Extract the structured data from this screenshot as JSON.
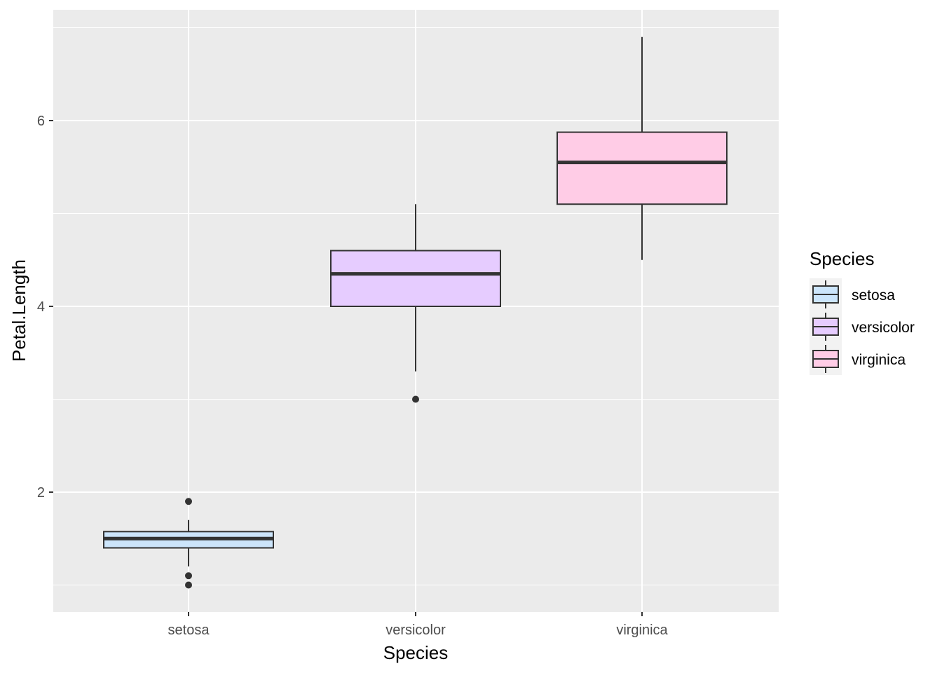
{
  "chart_data": {
    "type": "boxplot",
    "title": "",
    "xlabel": "Species",
    "ylabel": "Petal.Length",
    "categories": [
      "setosa",
      "versicolor",
      "virginica"
    ],
    "ylim": [
      0.75,
      7.2
    ],
    "yticks": [
      2,
      4,
      6
    ],
    "ytick_labels": [
      "2",
      "4",
      "6"
    ],
    "grid": true,
    "panel_background": "#ebebeb",
    "grid_color": "#ffffff",
    "box_outline_color": "#333333",
    "legend": {
      "title": "Species",
      "position": "right",
      "entries": [
        "setosa",
        "versicolor",
        "virginica"
      ]
    },
    "boxes": [
      {
        "category": "setosa",
        "fill": "#cce5fb",
        "whisker_low": 1.2,
        "q1": 1.4,
        "median": 1.5,
        "q3": 1.575,
        "whisker_high": 1.7,
        "outliers": [
          1.0,
          1.1,
          1.9
        ]
      },
      {
        "category": "versicolor",
        "fill": "#e6ccff",
        "whisker_low": 3.3,
        "q1": 4.0,
        "median": 4.35,
        "q3": 4.6,
        "whisker_high": 5.1,
        "outliers": [
          3.0
        ]
      },
      {
        "category": "virginica",
        "fill": "#ffcce6",
        "whisker_low": 4.5,
        "q1": 5.1,
        "median": 5.55,
        "q3": 5.875,
        "whisker_high": 6.9,
        "outliers": []
      }
    ]
  }
}
